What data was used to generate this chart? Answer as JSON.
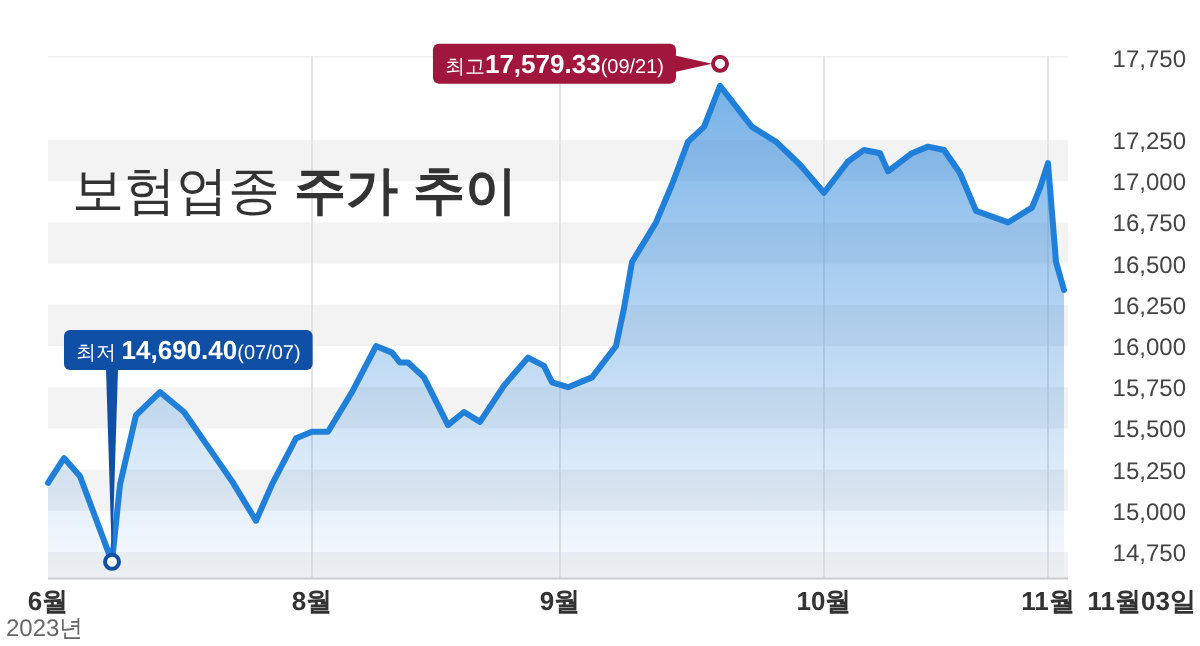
{
  "chart_data": {
    "type": "area",
    "title": "보험업종 **주가 추이**",
    "color": "#1f7fd9",
    "grid": true,
    "x": [
      "2023-06-29",
      "2023-07-01",
      "2023-07-03",
      "2023-07-07",
      "2023-07-08",
      "2023-07-10",
      "2023-07-13",
      "2023-07-16",
      "2023-07-20",
      "2023-07-22",
      "2023-07-25",
      "2023-07-27",
      "2023-07-30",
      "2023-08-01",
      "2023-08-03",
      "2023-08-06",
      "2023-08-09",
      "2023-08-11",
      "2023-08-12",
      "2023-08-13",
      "2023-08-15",
      "2023-08-18",
      "2023-08-20",
      "2023-08-22",
      "2023-08-25",
      "2023-08-28",
      "2023-08-30",
      "2023-08-31",
      "2023-09-02",
      "2023-09-05",
      "2023-09-08",
      "2023-09-09",
      "2023-09-10",
      "2023-09-13",
      "2023-09-15",
      "2023-09-17",
      "2023-09-19",
      "2023-09-21",
      "2023-09-25",
      "2023-09-28",
      "2023-10-01",
      "2023-10-04",
      "2023-10-07",
      "2023-10-09",
      "2023-10-11",
      "2023-10-12",
      "2023-10-15",
      "2023-10-17",
      "2023-10-19",
      "2023-10-21",
      "2023-10-23",
      "2023-10-27",
      "2023-10-30",
      "2023-10-31",
      "2023-11-01",
      "2023-11-02",
      "2023-11-03"
    ],
    "values": [
      15170,
      15320,
      15210,
      14690.4,
      15160,
      15580,
      15720,
      15600,
      15320,
      15180,
      14940,
      15160,
      15440,
      15480,
      15480,
      15720,
      16000,
      15960,
      15900,
      15900,
      15810,
      15520,
      15600,
      15540,
      15760,
      15930,
      15880,
      15780,
      15750,
      15810,
      16000,
      16230,
      16510,
      16750,
      16980,
      17240,
      17330,
      17579.33,
      17330,
      17240,
      17100,
      16930,
      17120,
      17190,
      17170,
      17060,
      17170,
      17210,
      17190,
      17050,
      16820,
      16750,
      16840,
      16960,
      17110,
      16510,
      16340
    ],
    "xlim": [
      "2023-06-29",
      "2023-11-03"
    ],
    "ylim": [
      14590,
      17760
    ],
    "xticks": [
      {
        "value": "2023-06-29",
        "label": "6월"
      },
      {
        "value": "2023-08-01",
        "label": "8월"
      },
      {
        "value": "2023-09-01",
        "label": "9월"
      },
      {
        "value": "2023-10-04",
        "label": "10월"
      },
      {
        "value": "2023-11-01",
        "label": "11월"
      }
    ],
    "yticks": [
      {
        "value": 14750,
        "label": "14,750"
      },
      {
        "value": 15000,
        "label": "15,000"
      },
      {
        "value": 15250,
        "label": "15,250"
      },
      {
        "value": 15500,
        "label": "15,500"
      },
      {
        "value": 15750,
        "label": "15,750"
      },
      {
        "value": 16000,
        "label": "16,000"
      },
      {
        "value": 16250,
        "label": "16,250"
      },
      {
        "value": 16500,
        "label": "16,500"
      },
      {
        "value": 16750,
        "label": "16,750"
      },
      {
        "value": 17000,
        "label": "17,000"
      },
      {
        "value": 17250,
        "label": "17,250"
      },
      {
        "value": 17750,
        "label": "17,750"
      }
    ],
    "annotations": [
      {
        "text": "최고**17,579.33**(09/21)",
        "x": "2023-09-21",
        "y": 17579.33
      },
      {
        "text": "최저 **14,690.40**(07/07)",
        "x": "2023-07-07",
        "y": 14690.4
      },
      "11월03일",
      "2023년"
    ]
  }
}
